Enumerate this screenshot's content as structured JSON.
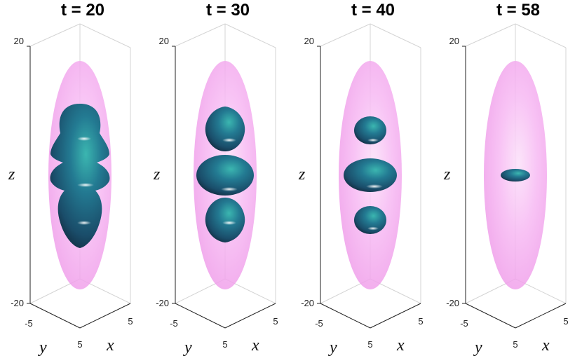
{
  "panels": [
    {
      "title": "t = 20",
      "z_max": "20",
      "z_min": "-20",
      "y_tick": "-5",
      "x_tick_right": "5",
      "x_tick_bottom": "5",
      "zlabel": "z",
      "ylabel": "y",
      "xlabel": "x"
    },
    {
      "title": "t = 30",
      "z_max": "20",
      "z_min": "-20",
      "y_tick": "-5",
      "x_tick_right": "5",
      "x_tick_bottom": "5",
      "zlabel": "z",
      "ylabel": "y",
      "xlabel": "x"
    },
    {
      "title": "t = 40",
      "z_max": "20",
      "z_min": "-20",
      "y_tick": "-5",
      "x_tick_right": "5",
      "x_tick_bottom": "5",
      "zlabel": "z",
      "ylabel": "y",
      "xlabel": "x"
    },
    {
      "title": "t = 58",
      "z_max": "20",
      "z_min": "-20",
      "y_tick": "-5",
      "x_tick_right": "5",
      "x_tick_bottom": "5",
      "zlabel": "z",
      "ylabel": "y",
      "xlabel": "x"
    }
  ],
  "colors": {
    "envelope": "#f5a8f0",
    "blob_dark": "#17324a",
    "blob_mid": "#1f6a86",
    "blob_light": "#2aa3a8"
  }
}
